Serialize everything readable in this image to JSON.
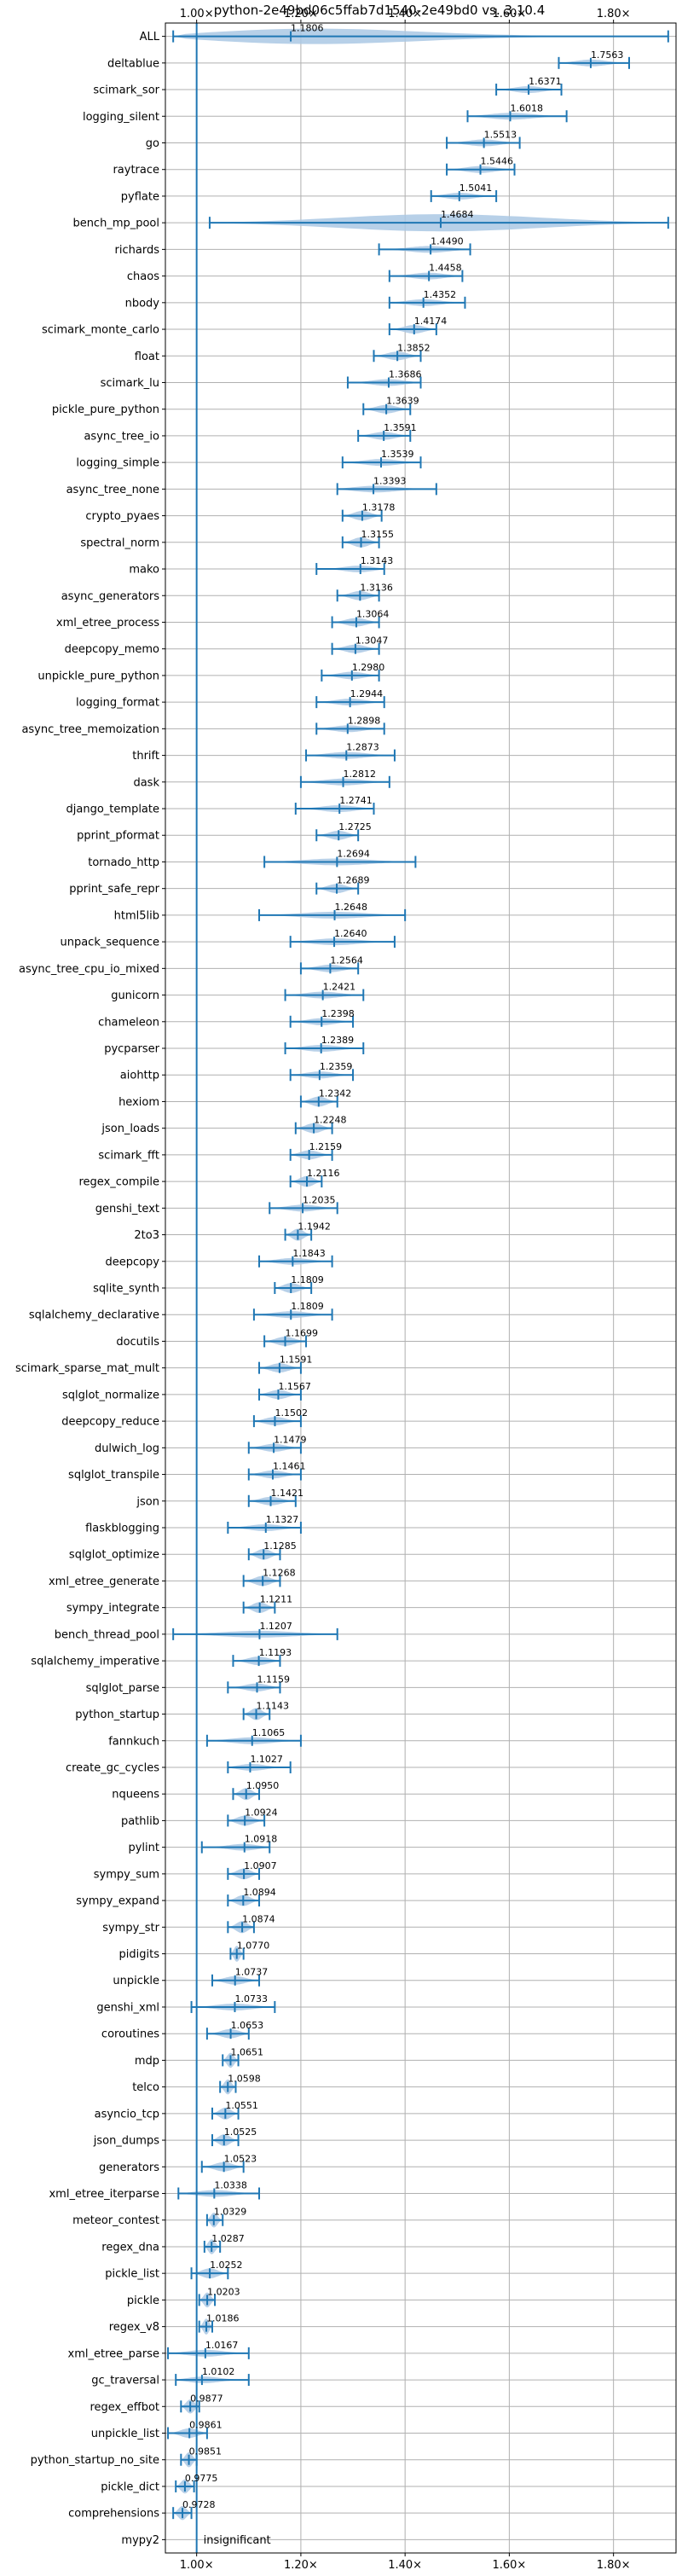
{
  "chart_data": {
    "type": "violin",
    "title": "python-2e49bd06c5ffab7d1540-2e49bd0 vs. 3.10.4",
    "xlabel": "",
    "ylabel": "",
    "xlim": [
      0.94,
      1.92
    ],
    "x_ticks": [
      1.0,
      1.2,
      1.4,
      1.6,
      1.8
    ],
    "x_tick_labels": [
      "1.00×",
      "1.20×",
      "1.40×",
      "1.60×",
      "1.80×"
    ],
    "grid": true,
    "reference_line": 1.0,
    "colors": {
      "violin": "#aac8e4",
      "whisker": "#1f77b4",
      "reference": "#1f77b4",
      "grid": "#b0b0b0"
    },
    "benchmarks": [
      {
        "name": "ALL",
        "median": 1.1806,
        "lo": 0.955,
        "hi": 1.905,
        "label": "1.1806"
      },
      {
        "name": "deltablue",
        "median": 1.7563,
        "lo": 1.695,
        "hi": 1.83,
        "label": "1.7563"
      },
      {
        "name": "scimark_sor",
        "median": 1.6371,
        "lo": 1.575,
        "hi": 1.7,
        "label": "1.6371"
      },
      {
        "name": "logging_silent",
        "median": 1.6018,
        "lo": 1.52,
        "hi": 1.71,
        "label": "1.6018"
      },
      {
        "name": "go",
        "median": 1.5513,
        "lo": 1.48,
        "hi": 1.62,
        "label": "1.5513"
      },
      {
        "name": "raytrace",
        "median": 1.5446,
        "lo": 1.48,
        "hi": 1.61,
        "label": "1.5446"
      },
      {
        "name": "pyflate",
        "median": 1.5041,
        "lo": 1.45,
        "hi": 1.575,
        "label": "1.5041"
      },
      {
        "name": "bench_mp_pool",
        "median": 1.4684,
        "lo": 1.025,
        "hi": 1.905,
        "label": "1.4684"
      },
      {
        "name": "richards",
        "median": 1.449,
        "lo": 1.35,
        "hi": 1.525,
        "label": "1.4490"
      },
      {
        "name": "chaos",
        "median": 1.4458,
        "lo": 1.37,
        "hi": 1.51,
        "label": "1.4458"
      },
      {
        "name": "nbody",
        "median": 1.4352,
        "lo": 1.37,
        "hi": 1.515,
        "label": "1.4352"
      },
      {
        "name": "scimark_monte_carlo",
        "median": 1.4174,
        "lo": 1.37,
        "hi": 1.46,
        "label": "1.4174"
      },
      {
        "name": "float",
        "median": 1.3852,
        "lo": 1.34,
        "hi": 1.43,
        "label": "1.3852"
      },
      {
        "name": "scimark_lu",
        "median": 1.3686,
        "lo": 1.29,
        "hi": 1.43,
        "label": "1.3686"
      },
      {
        "name": "pickle_pure_python",
        "median": 1.3639,
        "lo": 1.32,
        "hi": 1.41,
        "label": "1.3639"
      },
      {
        "name": "async_tree_io",
        "median": 1.3591,
        "lo": 1.31,
        "hi": 1.41,
        "label": "1.3591"
      },
      {
        "name": "logging_simple",
        "median": 1.3539,
        "lo": 1.28,
        "hi": 1.43,
        "label": "1.3539"
      },
      {
        "name": "async_tree_none",
        "median": 1.3393,
        "lo": 1.27,
        "hi": 1.46,
        "label": "1.3393"
      },
      {
        "name": "crypto_pyaes",
        "median": 1.3178,
        "lo": 1.28,
        "hi": 1.355,
        "label": "1.3178"
      },
      {
        "name": "spectral_norm",
        "median": 1.3155,
        "lo": 1.28,
        "hi": 1.35,
        "label": "1.3155"
      },
      {
        "name": "mako",
        "median": 1.3143,
        "lo": 1.23,
        "hi": 1.36,
        "label": "1.3143"
      },
      {
        "name": "async_generators",
        "median": 1.3136,
        "lo": 1.27,
        "hi": 1.35,
        "label": "1.3136"
      },
      {
        "name": "xml_etree_process",
        "median": 1.3064,
        "lo": 1.26,
        "hi": 1.35,
        "label": "1.3064"
      },
      {
        "name": "deepcopy_memo",
        "median": 1.3047,
        "lo": 1.26,
        "hi": 1.35,
        "label": "1.3047"
      },
      {
        "name": "unpickle_pure_python",
        "median": 1.298,
        "lo": 1.24,
        "hi": 1.35,
        "label": "1.2980"
      },
      {
        "name": "logging_format",
        "median": 1.2944,
        "lo": 1.23,
        "hi": 1.36,
        "label": "1.2944"
      },
      {
        "name": "async_tree_memoization",
        "median": 1.2898,
        "lo": 1.23,
        "hi": 1.36,
        "label": "1.2898"
      },
      {
        "name": "thrift",
        "median": 1.2873,
        "lo": 1.21,
        "hi": 1.38,
        "label": "1.2873"
      },
      {
        "name": "dask",
        "median": 1.2812,
        "lo": 1.2,
        "hi": 1.37,
        "label": "1.2812"
      },
      {
        "name": "django_template",
        "median": 1.2741,
        "lo": 1.19,
        "hi": 1.34,
        "label": "1.2741"
      },
      {
        "name": "pprint_pformat",
        "median": 1.2725,
        "lo": 1.23,
        "hi": 1.31,
        "label": "1.2725"
      },
      {
        "name": "tornado_http",
        "median": 1.2694,
        "lo": 1.13,
        "hi": 1.42,
        "label": "1.2694"
      },
      {
        "name": "pprint_safe_repr",
        "median": 1.2689,
        "lo": 1.23,
        "hi": 1.31,
        "label": "1.2689"
      },
      {
        "name": "html5lib",
        "median": 1.2648,
        "lo": 1.12,
        "hi": 1.4,
        "label": "1.2648"
      },
      {
        "name": "unpack_sequence",
        "median": 1.264,
        "lo": 1.18,
        "hi": 1.38,
        "label": "1.2640"
      },
      {
        "name": "async_tree_cpu_io_mixed",
        "median": 1.2564,
        "lo": 1.2,
        "hi": 1.31,
        "label": "1.2564"
      },
      {
        "name": "gunicorn",
        "median": 1.2421,
        "lo": 1.17,
        "hi": 1.32,
        "label": "1.2421"
      },
      {
        "name": "chameleon",
        "median": 1.2398,
        "lo": 1.18,
        "hi": 1.3,
        "label": "1.2398"
      },
      {
        "name": "pycparser",
        "median": 1.2389,
        "lo": 1.17,
        "hi": 1.32,
        "label": "1.2389"
      },
      {
        "name": "aiohttp",
        "median": 1.2359,
        "lo": 1.18,
        "hi": 1.3,
        "label": "1.2359"
      },
      {
        "name": "hexiom",
        "median": 1.2342,
        "lo": 1.2,
        "hi": 1.27,
        "label": "1.2342"
      },
      {
        "name": "json_loads",
        "median": 1.2248,
        "lo": 1.19,
        "hi": 1.26,
        "label": "1.2248"
      },
      {
        "name": "scimark_fft",
        "median": 1.2159,
        "lo": 1.18,
        "hi": 1.26,
        "label": "1.2159"
      },
      {
        "name": "regex_compile",
        "median": 1.2116,
        "lo": 1.18,
        "hi": 1.24,
        "label": "1.2116"
      },
      {
        "name": "genshi_text",
        "median": 1.2035,
        "lo": 1.14,
        "hi": 1.27,
        "label": "1.2035"
      },
      {
        "name": "2to3",
        "median": 1.1942,
        "lo": 1.17,
        "hi": 1.22,
        "label": "1.1942"
      },
      {
        "name": "deepcopy",
        "median": 1.1843,
        "lo": 1.12,
        "hi": 1.26,
        "label": "1.1843"
      },
      {
        "name": "sqlite_synth",
        "median": 1.1809,
        "lo": 1.15,
        "hi": 1.22,
        "label": "1.1809"
      },
      {
        "name": "sqlalchemy_declarative",
        "median": 1.1809,
        "lo": 1.11,
        "hi": 1.26,
        "label": "1.1809"
      },
      {
        "name": "docutils",
        "median": 1.1699,
        "lo": 1.13,
        "hi": 1.21,
        "label": "1.1699"
      },
      {
        "name": "scimark_sparse_mat_mult",
        "median": 1.1591,
        "lo": 1.12,
        "hi": 1.2,
        "label": "1.1591"
      },
      {
        "name": "sqlglot_normalize",
        "median": 1.1567,
        "lo": 1.12,
        "hi": 1.2,
        "label": "1.1567"
      },
      {
        "name": "deepcopy_reduce",
        "median": 1.1502,
        "lo": 1.11,
        "hi": 1.2,
        "label": "1.1502"
      },
      {
        "name": "dulwich_log",
        "median": 1.1479,
        "lo": 1.1,
        "hi": 1.2,
        "label": "1.1479"
      },
      {
        "name": "sqlglot_transpile",
        "median": 1.1461,
        "lo": 1.1,
        "hi": 1.2,
        "label": "1.1461"
      },
      {
        "name": "json",
        "median": 1.1421,
        "lo": 1.1,
        "hi": 1.19,
        "label": "1.1421"
      },
      {
        "name": "flaskblogging",
        "median": 1.1327,
        "lo": 1.06,
        "hi": 1.2,
        "label": "1.1327"
      },
      {
        "name": "sqlglot_optimize",
        "median": 1.1285,
        "lo": 1.1,
        "hi": 1.16,
        "label": "1.1285"
      },
      {
        "name": "xml_etree_generate",
        "median": 1.1268,
        "lo": 1.09,
        "hi": 1.16,
        "label": "1.1268"
      },
      {
        "name": "sympy_integrate",
        "median": 1.1211,
        "lo": 1.09,
        "hi": 1.15,
        "label": "1.1211"
      },
      {
        "name": "bench_thread_pool",
        "median": 1.1207,
        "lo": 0.955,
        "hi": 1.27,
        "label": "1.1207"
      },
      {
        "name": "sqlalchemy_imperative",
        "median": 1.1193,
        "lo": 1.07,
        "hi": 1.16,
        "label": "1.1193"
      },
      {
        "name": "sqlglot_parse",
        "median": 1.1159,
        "lo": 1.06,
        "hi": 1.16,
        "label": "1.1159"
      },
      {
        "name": "python_startup",
        "median": 1.1143,
        "lo": 1.09,
        "hi": 1.14,
        "label": "1.1143"
      },
      {
        "name": "fannkuch",
        "median": 1.1065,
        "lo": 1.02,
        "hi": 1.2,
        "label": "1.1065"
      },
      {
        "name": "create_gc_cycles",
        "median": 1.1027,
        "lo": 1.06,
        "hi": 1.18,
        "label": "1.1027"
      },
      {
        "name": "nqueens",
        "median": 1.095,
        "lo": 1.07,
        "hi": 1.12,
        "label": "1.0950"
      },
      {
        "name": "pathlib",
        "median": 1.0924,
        "lo": 1.06,
        "hi": 1.13,
        "label": "1.0924"
      },
      {
        "name": "pylint",
        "median": 1.0918,
        "lo": 1.01,
        "hi": 1.14,
        "label": "1.0918"
      },
      {
        "name": "sympy_sum",
        "median": 1.0907,
        "lo": 1.06,
        "hi": 1.12,
        "label": "1.0907"
      },
      {
        "name": "sympy_expand",
        "median": 1.0894,
        "lo": 1.06,
        "hi": 1.12,
        "label": "1.0894"
      },
      {
        "name": "sympy_str",
        "median": 1.0874,
        "lo": 1.06,
        "hi": 1.11,
        "label": "1.0874"
      },
      {
        "name": "pidigits",
        "median": 1.077,
        "lo": 1.065,
        "hi": 1.09,
        "label": "1.0770"
      },
      {
        "name": "unpickle",
        "median": 1.0737,
        "lo": 1.03,
        "hi": 1.12,
        "label": "1.0737"
      },
      {
        "name": "genshi_xml",
        "median": 1.0733,
        "lo": 0.99,
        "hi": 1.15,
        "label": "1.0733"
      },
      {
        "name": "coroutines",
        "median": 1.0653,
        "lo": 1.02,
        "hi": 1.1,
        "label": "1.0653"
      },
      {
        "name": "mdp",
        "median": 1.0651,
        "lo": 1.05,
        "hi": 1.08,
        "label": "1.0651"
      },
      {
        "name": "telco",
        "median": 1.0598,
        "lo": 1.045,
        "hi": 1.075,
        "label": "1.0598"
      },
      {
        "name": "asyncio_tcp",
        "median": 1.0551,
        "lo": 1.03,
        "hi": 1.08,
        "label": "1.0551"
      },
      {
        "name": "json_dumps",
        "median": 1.0525,
        "lo": 1.03,
        "hi": 1.08,
        "label": "1.0525"
      },
      {
        "name": "generators",
        "median": 1.0523,
        "lo": 1.01,
        "hi": 1.09,
        "label": "1.0523"
      },
      {
        "name": "xml_etree_iterparse",
        "median": 1.0338,
        "lo": 0.965,
        "hi": 1.12,
        "label": "1.0338"
      },
      {
        "name": "meteor_contest",
        "median": 1.0329,
        "lo": 1.02,
        "hi": 1.05,
        "label": "1.0329"
      },
      {
        "name": "regex_dna",
        "median": 1.0287,
        "lo": 1.015,
        "hi": 1.045,
        "label": "1.0287"
      },
      {
        "name": "pickle_list",
        "median": 1.0252,
        "lo": 0.99,
        "hi": 1.06,
        "label": "1.0252"
      },
      {
        "name": "pickle",
        "median": 1.0203,
        "lo": 1.005,
        "hi": 1.035,
        "label": "1.0203"
      },
      {
        "name": "regex_v8",
        "median": 1.0186,
        "lo": 1.005,
        "hi": 1.03,
        "label": "1.0186"
      },
      {
        "name": "xml_etree_parse",
        "median": 1.0167,
        "lo": 0.945,
        "hi": 1.1,
        "label": "1.0167"
      },
      {
        "name": "gc_traversal",
        "median": 1.0102,
        "lo": 0.96,
        "hi": 1.1,
        "label": "1.0102"
      },
      {
        "name": "regex_effbot",
        "median": 0.9877,
        "lo": 0.97,
        "hi": 1.005,
        "label": "0.9877"
      },
      {
        "name": "unpickle_list",
        "median": 0.9861,
        "lo": 0.945,
        "hi": 1.02,
        "label": "0.9861"
      },
      {
        "name": "python_startup_no_site",
        "median": 0.9851,
        "lo": 0.97,
        "hi": 1.0,
        "label": "0.9851"
      },
      {
        "name": "pickle_dict",
        "median": 0.9775,
        "lo": 0.96,
        "hi": 0.995,
        "label": "0.9775"
      },
      {
        "name": "comprehensions",
        "median": 0.9728,
        "lo": 0.955,
        "hi": 0.99,
        "label": "0.9728"
      },
      {
        "name": "mypy2",
        "median": null,
        "lo": null,
        "hi": null,
        "label": "insignificant"
      }
    ]
  }
}
